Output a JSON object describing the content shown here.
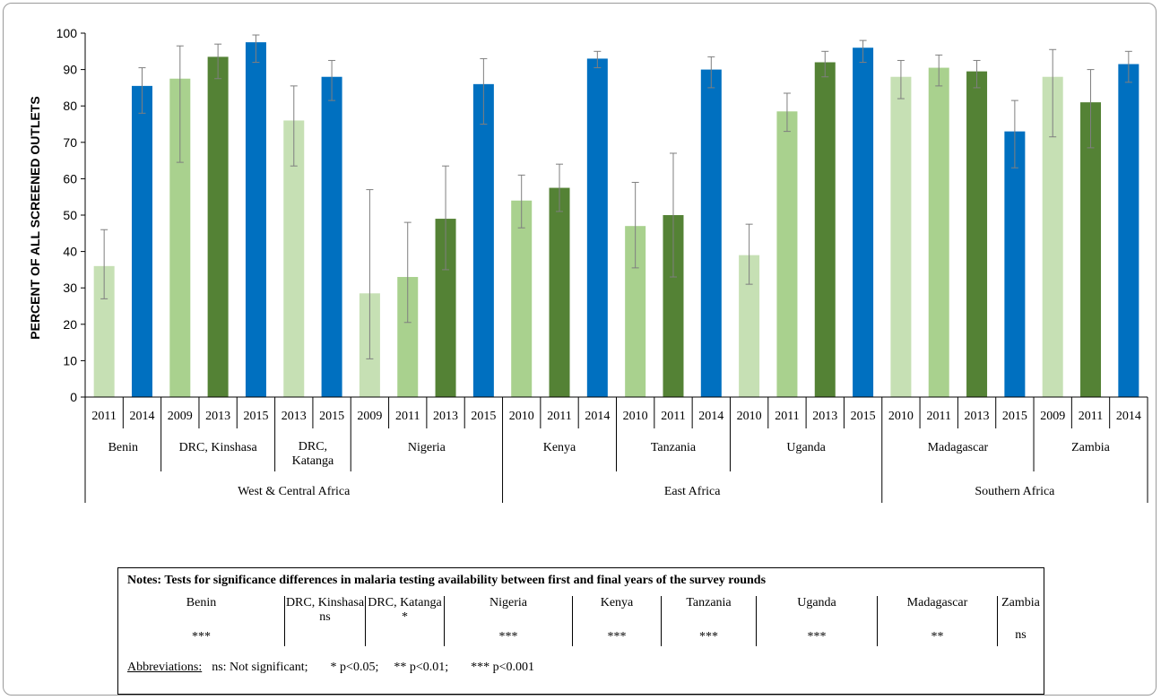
{
  "chart_data": {
    "type": "bar",
    "title": "",
    "ylabel": "PERCENT OF ALL SCREENED OUTLETS",
    "xlabel": "",
    "ylim": [
      0,
      100
    ],
    "yticks": [
      0,
      10,
      20,
      30,
      40,
      50,
      60,
      70,
      80,
      90,
      100
    ],
    "grid": false,
    "legend": "none",
    "colors": {
      "light": "#c6e0b4",
      "mid": "#a9d18e",
      "dark": "#548235",
      "blue": "#0070c0",
      "errorbar": "#7f7f7f",
      "axis": "#000000"
    },
    "bars": [
      {
        "year": "2011",
        "value": 36,
        "low": 27,
        "high": 46,
        "color": "light"
      },
      {
        "year": "2014",
        "value": 85.5,
        "low": 78,
        "high": 90.5,
        "color": "blue"
      },
      {
        "year": "2009",
        "value": 87.5,
        "low": 64.5,
        "high": 96.5,
        "color": "mid"
      },
      {
        "year": "2013",
        "value": 93.5,
        "low": 87.5,
        "high": 97,
        "color": "dark"
      },
      {
        "year": "2015",
        "value": 97.5,
        "low": 92,
        "high": 99.5,
        "color": "blue"
      },
      {
        "year": "2013",
        "value": 76,
        "low": 63.5,
        "high": 85.5,
        "color": "light"
      },
      {
        "year": "2015",
        "value": 88,
        "low": 81.5,
        "high": 92.5,
        "color": "blue"
      },
      {
        "year": "2009",
        "value": 28.5,
        "low": 10.5,
        "high": 57,
        "color": "light"
      },
      {
        "year": "2011",
        "value": 33,
        "low": 20.5,
        "high": 48,
        "color": "mid"
      },
      {
        "year": "2013",
        "value": 49,
        "low": 35,
        "high": 63.5,
        "color": "dark"
      },
      {
        "year": "2015",
        "value": 86,
        "low": 75,
        "high": 93,
        "color": "blue"
      },
      {
        "year": "2010",
        "value": 54,
        "low": 46.5,
        "high": 61,
        "color": "mid"
      },
      {
        "year": "2011",
        "value": 57.5,
        "low": 51,
        "high": 64,
        "color": "dark"
      },
      {
        "year": "2014",
        "value": 93,
        "low": 90.5,
        "high": 95,
        "color": "blue"
      },
      {
        "year": "2010",
        "value": 47,
        "low": 35.5,
        "high": 59,
        "color": "mid"
      },
      {
        "year": "2011",
        "value": 50,
        "low": 33,
        "high": 67,
        "color": "dark"
      },
      {
        "year": "2014",
        "value": 90,
        "low": 85,
        "high": 93.5,
        "color": "blue"
      },
      {
        "year": "2010",
        "value": 39,
        "low": 31,
        "high": 47.5,
        "color": "light"
      },
      {
        "year": "2011",
        "value": 78.5,
        "low": 73,
        "high": 83.5,
        "color": "mid"
      },
      {
        "year": "2013",
        "value": 92,
        "low": 88,
        "high": 95,
        "color": "dark"
      },
      {
        "year": "2015",
        "value": 96,
        "low": 92,
        "high": 98,
        "color": "blue"
      },
      {
        "year": "2010",
        "value": 88,
        "low": 82,
        "high": 92.5,
        "color": "light"
      },
      {
        "year": "2011",
        "value": 90.5,
        "low": 85.5,
        "high": 94,
        "color": "mid"
      },
      {
        "year": "2013",
        "value": 89.5,
        "low": 85,
        "high": 92.5,
        "color": "dark"
      },
      {
        "year": "2015",
        "value": 73,
        "low": 63,
        "high": 81.5,
        "color": "blue"
      },
      {
        "year": "2009",
        "value": 88,
        "low": 71.5,
        "high": 95.5,
        "color": "light"
      },
      {
        "year": "2011",
        "value": 81,
        "low": 68.5,
        "high": 90,
        "color": "dark"
      },
      {
        "year": "2014",
        "value": 91.5,
        "low": 86.5,
        "high": 95,
        "color": "blue"
      }
    ],
    "countries": [
      {
        "lines": [
          "Benin"
        ],
        "start": 0,
        "count": 2
      },
      {
        "lines": [
          "DRC, Kinshasa"
        ],
        "start": 2,
        "count": 3
      },
      {
        "lines": [
          "DRC,",
          "Katanga"
        ],
        "start": 5,
        "count": 2
      },
      {
        "lines": [
          "Nigeria"
        ],
        "start": 7,
        "count": 4
      },
      {
        "lines": [
          "Kenya"
        ],
        "start": 11,
        "count": 3
      },
      {
        "lines": [
          "Tanzania"
        ],
        "start": 14,
        "count": 3
      },
      {
        "lines": [
          "Uganda"
        ],
        "start": 17,
        "count": 4
      },
      {
        "lines": [
          "Madagascar"
        ],
        "start": 21,
        "count": 4
      },
      {
        "lines": [
          "Zambia"
        ],
        "start": 25,
        "count": 3
      }
    ],
    "regions": [
      {
        "name": "West & Central Africa",
        "start": 0,
        "count": 11
      },
      {
        "name": "East Africa",
        "start": 11,
        "count": 10
      },
      {
        "name": "Southern Africa",
        "start": 21,
        "count": 7
      }
    ]
  },
  "notes": {
    "title": "Notes: Tests for significance differences in malaria testing availability between first and final years of the survey rounds",
    "columns": [
      {
        "name": "Benin",
        "value": "***"
      },
      {
        "name": "DRC, Kinshasa",
        "value": "ns"
      },
      {
        "name": "DRC, Katanga",
        "value": "*"
      },
      {
        "name": "Nigeria",
        "value": "***"
      },
      {
        "name": "Kenya",
        "value": "***"
      },
      {
        "name": "Tanzania",
        "value": "***"
      },
      {
        "name": "Uganda",
        "value": "***"
      },
      {
        "name": "Madagascar",
        "value": "**"
      },
      {
        "name": "Zambia",
        "value": "ns"
      }
    ],
    "abbreviations": {
      "label": "Abbreviations:",
      "ns": "ns: Not significant;",
      "p05": "* p<0.05;",
      "p01": "** p<0.01;",
      "p001": "*** p<0.001"
    }
  }
}
